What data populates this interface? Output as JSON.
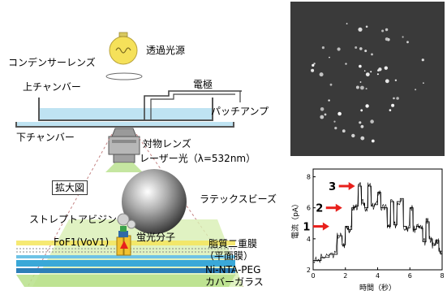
{
  "diagram": {
    "light_source": "透過光源",
    "condenser_lens": "コンデンサーレンズ",
    "upper_chamber": "上チャンバー",
    "electrode": "電極",
    "patch_amp": "パッチアンプ",
    "lower_chamber": "下チャンバー",
    "objective_lens": "対物レンズ",
    "laser": "レーザー光（λ=532nm）",
    "magnified": "拡大図",
    "latex_beads": "ラテックスビーズ",
    "streptavidin": "ストレプトアビジン",
    "fofi_label": "FoF1(VoV1)",
    "fluorescent": "蛍光分子",
    "lipid_bilayer": "脂質二重膜",
    "planar_membrane": "（平面膜）",
    "ni_nta_peg": "Ni-NTA-PEG",
    "cover_glass": "カバーガラス"
  },
  "colors": {
    "bulb": "#f5e15a",
    "beam_green": "#b7e08a",
    "water": "#bfe3f2",
    "bead": "#6e6e6e",
    "arrow_red": "#e8201c",
    "membrane_yellow": "#f4e55b",
    "glass_blue": "#3aa8d8"
  },
  "chart_data": {
    "type": "line",
    "xlabel": "時間（秒）",
    "ylabel": "電流（pA）",
    "xlim": [
      0,
      8
    ],
    "ylim": [
      2,
      8.5
    ],
    "xticks": [
      0,
      2,
      4,
      6,
      8
    ],
    "yticks": [
      2,
      4,
      6,
      8
    ],
    "levels": [
      {
        "label": "1",
        "value": 4.8
      },
      {
        "label": "2",
        "value": 6.0
      },
      {
        "label": "3",
        "value": 7.4
      }
    ],
    "series": [
      {
        "x": [
          0.0,
          0.5,
          1.0,
          1.5,
          1.8,
          2.0,
          2.2,
          2.4,
          2.6,
          2.8,
          3.0,
          3.2,
          3.4,
          3.6,
          3.8,
          4.0,
          4.2,
          4.4,
          4.6,
          4.8,
          5.0,
          5.2,
          5.4,
          5.6,
          5.8,
          6.0,
          6.2,
          6.4,
          6.6,
          6.8,
          7.0,
          7.2,
          7.4,
          7.6,
          7.8,
          8.0
        ],
        "y": [
          2.6,
          2.8,
          3.0,
          4.2,
          3.6,
          4.8,
          4.6,
          6.0,
          6.1,
          7.4,
          6.3,
          6.0,
          7.4,
          6.1,
          6.2,
          7.0,
          6.0,
          6.0,
          4.8,
          6.4,
          4.9,
          6.4,
          6.6,
          4.8,
          4.7,
          6.0,
          4.6,
          4.8,
          4.7,
          3.8,
          5.1,
          4.0,
          3.6,
          3.9,
          3.2,
          4.0
        ]
      }
    ]
  }
}
